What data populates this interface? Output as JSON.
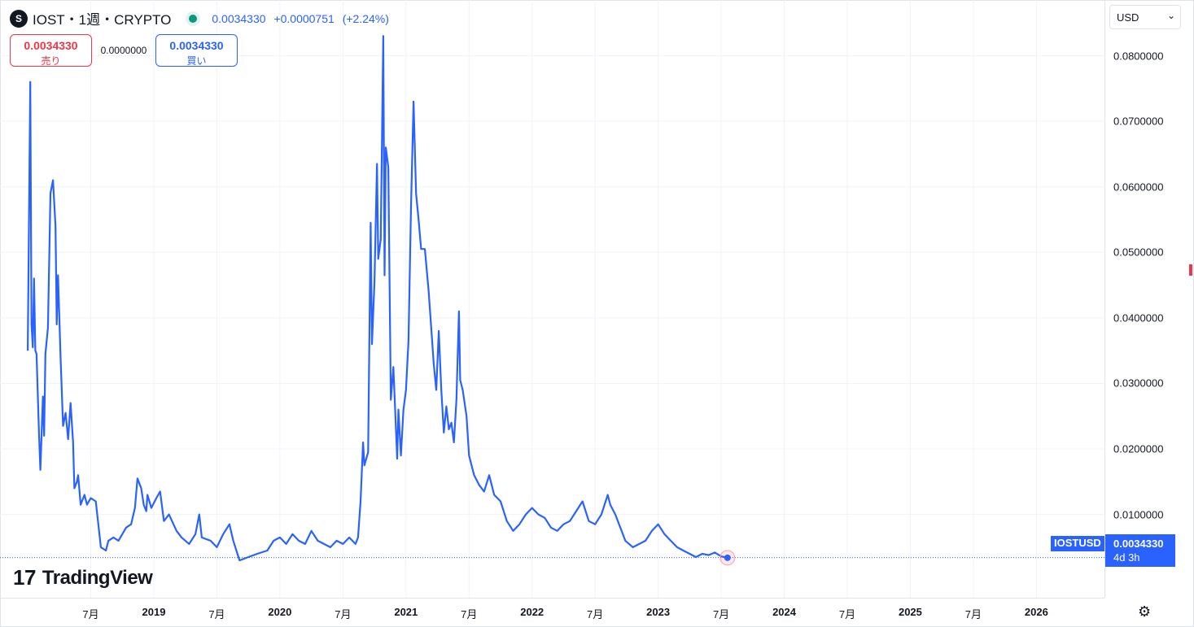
{
  "header": {
    "logo_glyph": "S",
    "symbol_title": "IOST・1週・CRYPTO",
    "last": "0.0034330",
    "change": "+0.0000751",
    "change_pct": "(+2.24%)"
  },
  "trade": {
    "sell_price": "0.0034330",
    "sell_label": "売り",
    "spread": "0.0000000",
    "buy_price": "0.0034330",
    "buy_label": "買い"
  },
  "currency": {
    "value": "USD",
    "icon": "chevron-down-icon"
  },
  "price_tag": {
    "symbol": "IOSTUSD",
    "price": "0.0034330",
    "countdown": "4d 3h"
  },
  "branding": {
    "mark": "17",
    "name": "TradingView"
  },
  "settings_icon": "gear-icon",
  "colors": {
    "line": "#2962ff",
    "up": "#089981",
    "down": "#f23645",
    "grid": "#f0f3fa"
  },
  "chart_data": {
    "type": "line",
    "title": "",
    "xlabel": "",
    "ylabel": "",
    "ylim": [
      -0.0027,
      0.0885
    ],
    "xlim": [
      2017.78,
      2026.54
    ],
    "yticks": [
      "0.0100000",
      "0.0200000",
      "0.0300000",
      "0.0400000",
      "0.0500000",
      "0.0600000",
      "0.0700000",
      "0.0800000"
    ],
    "xticks": [
      {
        "label": "7月",
        "x": 2018.5,
        "year": false
      },
      {
        "label": "2019",
        "x": 2019.0,
        "year": true
      },
      {
        "label": "7月",
        "x": 2019.5,
        "year": false
      },
      {
        "label": "2020",
        "x": 2020.0,
        "year": true
      },
      {
        "label": "7月",
        "x": 2020.5,
        "year": false
      },
      {
        "label": "2021",
        "x": 2021.0,
        "year": true
      },
      {
        "label": "7月",
        "x": 2021.5,
        "year": false
      },
      {
        "label": "2022",
        "x": 2022.0,
        "year": true
      },
      {
        "label": "7月",
        "x": 2022.5,
        "year": false
      },
      {
        "label": "2023",
        "x": 2023.0,
        "year": true
      },
      {
        "label": "7月",
        "x": 2023.5,
        "year": false
      },
      {
        "label": "2024",
        "x": 2024.0,
        "year": true
      },
      {
        "label": "7月",
        "x": 2024.5,
        "year": false
      },
      {
        "label": "2025",
        "x": 2025.0,
        "year": true
      },
      {
        "label": "7月",
        "x": 2025.5,
        "year": false
      },
      {
        "label": "2026",
        "x": 2026.0,
        "year": true
      }
    ],
    "grid": true,
    "current_value": 0.003433,
    "series": [
      {
        "color": "#2962ff",
        "points": [
          [
            2018.0,
            0.035
          ],
          [
            2018.02,
            0.076
          ],
          [
            2018.03,
            0.039
          ],
          [
            2018.04,
            0.0355
          ],
          [
            2018.05,
            0.046
          ],
          [
            2018.06,
            0.035
          ],
          [
            2018.07,
            0.0345
          ],
          [
            2018.09,
            0.022
          ],
          [
            2018.1,
            0.0168
          ],
          [
            2018.12,
            0.028
          ],
          [
            2018.13,
            0.022
          ],
          [
            2018.14,
            0.0345
          ],
          [
            2018.16,
            0.0385
          ],
          [
            2018.18,
            0.059
          ],
          [
            2018.2,
            0.061
          ],
          [
            2018.22,
            0.054
          ],
          [
            2018.23,
            0.039
          ],
          [
            2018.24,
            0.0465
          ],
          [
            2018.26,
            0.034
          ],
          [
            2018.28,
            0.0235
          ],
          [
            2018.3,
            0.0255
          ],
          [
            2018.32,
            0.0215
          ],
          [
            2018.34,
            0.027
          ],
          [
            2018.36,
            0.021
          ],
          [
            2018.37,
            0.014
          ],
          [
            2018.39,
            0.015
          ],
          [
            2018.4,
            0.016
          ],
          [
            2018.42,
            0.0115
          ],
          [
            2018.45,
            0.013
          ],
          [
            2018.47,
            0.0115
          ],
          [
            2018.5,
            0.0125
          ],
          [
            2018.54,
            0.012
          ],
          [
            2018.58,
            0.005
          ],
          [
            2018.62,
            0.0045
          ],
          [
            2018.64,
            0.006
          ],
          [
            2018.68,
            0.0065
          ],
          [
            2018.72,
            0.006
          ],
          [
            2018.78,
            0.008
          ],
          [
            2018.82,
            0.0085
          ],
          [
            2018.85,
            0.011
          ],
          [
            2018.87,
            0.0155
          ],
          [
            2018.9,
            0.014
          ],
          [
            2018.92,
            0.0115
          ],
          [
            2018.94,
            0.0105
          ],
          [
            2018.95,
            0.013
          ],
          [
            2018.98,
            0.011
          ],
          [
            2019.02,
            0.0125
          ],
          [
            2019.05,
            0.0135
          ],
          [
            2019.08,
            0.009
          ],
          [
            2019.12,
            0.01
          ],
          [
            2019.18,
            0.0075
          ],
          [
            2019.22,
            0.0065
          ],
          [
            2019.28,
            0.0055
          ],
          [
            2019.33,
            0.007
          ],
          [
            2019.36,
            0.01
          ],
          [
            2019.38,
            0.0065
          ],
          [
            2019.45,
            0.006
          ],
          [
            2019.5,
            0.005
          ],
          [
            2019.55,
            0.007
          ],
          [
            2019.6,
            0.0085
          ],
          [
            2019.63,
            0.006
          ],
          [
            2019.68,
            0.003
          ],
          [
            2019.75,
            0.0035
          ],
          [
            2019.82,
            0.004
          ],
          [
            2019.9,
            0.0045
          ],
          [
            2019.95,
            0.006
          ],
          [
            2020.0,
            0.0065
          ],
          [
            2020.05,
            0.0055
          ],
          [
            2020.1,
            0.007
          ],
          [
            2020.15,
            0.006
          ],
          [
            2020.2,
            0.0055
          ],
          [
            2020.25,
            0.0075
          ],
          [
            2020.3,
            0.006
          ],
          [
            2020.35,
            0.0055
          ],
          [
            2020.4,
            0.005
          ],
          [
            2020.45,
            0.006
          ],
          [
            2020.5,
            0.0055
          ],
          [
            2020.55,
            0.0065
          ],
          [
            2020.6,
            0.0055
          ],
          [
            2020.62,
            0.0065
          ],
          [
            2020.64,
            0.012
          ],
          [
            2020.66,
            0.021
          ],
          [
            2020.67,
            0.0175
          ],
          [
            2020.7,
            0.0195
          ],
          [
            2020.72,
            0.0545
          ],
          [
            2020.73,
            0.036
          ],
          [
            2020.75,
            0.0455
          ],
          [
            2020.77,
            0.0635
          ],
          [
            2020.78,
            0.049
          ],
          [
            2020.8,
            0.052
          ],
          [
            2020.82,
            0.083
          ],
          [
            2020.83,
            0.0465
          ],
          [
            2020.84,
            0.066
          ],
          [
            2020.86,
            0.063
          ],
          [
            2020.88,
            0.0275
          ],
          [
            2020.9,
            0.0325
          ],
          [
            2020.93,
            0.0185
          ],
          [
            2020.94,
            0.026
          ],
          [
            2020.96,
            0.019
          ],
          [
            2020.98,
            0.026
          ],
          [
            2021.0,
            0.029
          ],
          [
            2021.02,
            0.0365
          ],
          [
            2021.04,
            0.057
          ],
          [
            2021.06,
            0.073
          ],
          [
            2021.08,
            0.059
          ],
          [
            2021.1,
            0.055
          ],
          [
            2021.12,
            0.0505
          ],
          [
            2021.15,
            0.0505
          ],
          [
            2021.18,
            0.044
          ],
          [
            2021.22,
            0.033
          ],
          [
            2021.24,
            0.029
          ],
          [
            2021.26,
            0.038
          ],
          [
            2021.28,
            0.029
          ],
          [
            2021.3,
            0.0225
          ],
          [
            2021.32,
            0.0265
          ],
          [
            2021.34,
            0.023
          ],
          [
            2021.36,
            0.024
          ],
          [
            2021.38,
            0.021
          ],
          [
            2021.4,
            0.0275
          ],
          [
            2021.42,
            0.041
          ],
          [
            2021.43,
            0.0305
          ],
          [
            2021.45,
            0.029
          ],
          [
            2021.48,
            0.025
          ],
          [
            2021.5,
            0.019
          ],
          [
            2021.54,
            0.016
          ],
          [
            2021.58,
            0.0145
          ],
          [
            2021.62,
            0.0135
          ],
          [
            2021.66,
            0.016
          ],
          [
            2021.7,
            0.013
          ],
          [
            2021.75,
            0.012
          ],
          [
            2021.8,
            0.009
          ],
          [
            2021.85,
            0.0075
          ],
          [
            2021.9,
            0.0085
          ],
          [
            2021.95,
            0.01
          ],
          [
            2022.0,
            0.011
          ],
          [
            2022.05,
            0.01
          ],
          [
            2022.1,
            0.0095
          ],
          [
            2022.15,
            0.008
          ],
          [
            2022.2,
            0.0075
          ],
          [
            2022.25,
            0.0085
          ],
          [
            2022.3,
            0.009
          ],
          [
            2022.35,
            0.0105
          ],
          [
            2022.4,
            0.012
          ],
          [
            2022.45,
            0.009
          ],
          [
            2022.5,
            0.0085
          ],
          [
            2022.55,
            0.01
          ],
          [
            2022.6,
            0.013
          ],
          [
            2022.62,
            0.0115
          ],
          [
            2022.66,
            0.01
          ],
          [
            2022.7,
            0.008
          ],
          [
            2022.74,
            0.006
          ],
          [
            2022.8,
            0.005
          ],
          [
            2022.85,
            0.0055
          ],
          [
            2022.9,
            0.006
          ],
          [
            2022.95,
            0.0075
          ],
          [
            2023.0,
            0.0085
          ],
          [
            2023.05,
            0.007
          ],
          [
            2023.1,
            0.006
          ],
          [
            2023.15,
            0.005
          ],
          [
            2023.2,
            0.0045
          ],
          [
            2023.25,
            0.004
          ],
          [
            2023.3,
            0.0035
          ],
          [
            2023.35,
            0.004
          ],
          [
            2023.4,
            0.0038
          ],
          [
            2023.45,
            0.0042
          ],
          [
            2023.5,
            0.0036
          ],
          [
            2023.55,
            0.0034
          ]
        ]
      }
    ]
  }
}
